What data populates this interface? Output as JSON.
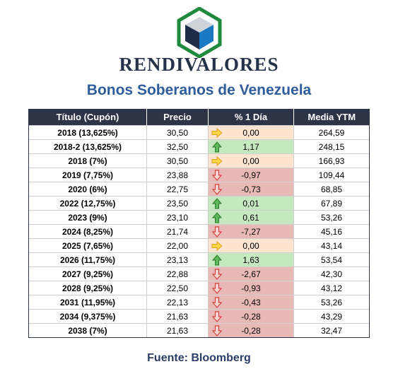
{
  "brand": "RENDIVALORES",
  "subtitle": "Bonos Soberanos de Venezuela",
  "columns": [
    "Título (Cupón)",
    "Precio",
    "% 1 Día",
    "Media YTM"
  ],
  "colors": {
    "header_bg": "#2c3446",
    "up": "#c6e8c0",
    "down": "#e9b9b8",
    "flat": "#fde4d0",
    "subtitle": "#2f5d9b"
  },
  "rows": [
    {
      "title": "2018 (13,625%)",
      "price": "30,50",
      "change": "0,00",
      "dir": "flat",
      "ytm": "264,59"
    },
    {
      "title": "2018-2 (13,625%)",
      "price": "32,50",
      "change": "1,17",
      "dir": "up",
      "ytm": "248,15"
    },
    {
      "title": "2018 (7%)",
      "price": "30,50",
      "change": "0,00",
      "dir": "flat",
      "ytm": "166,93"
    },
    {
      "title": "2019 (7,75%)",
      "price": "23,88",
      "change": "-0,97",
      "dir": "down",
      "ytm": "109,44"
    },
    {
      "title": "2020 (6%)",
      "price": "22,75",
      "change": "-0,73",
      "dir": "down",
      "ytm": "68,85"
    },
    {
      "title": "2022 (12,75%)",
      "price": "23,50",
      "change": "0,01",
      "dir": "up",
      "ytm": "67,89"
    },
    {
      "title": "2023 (9%)",
      "price": "23,10",
      "change": "0,61",
      "dir": "up",
      "ytm": "53,26"
    },
    {
      "title": "2024 (8,25%)",
      "price": "21,74",
      "change": "-7,27",
      "dir": "down",
      "ytm": "45,16"
    },
    {
      "title": "2025 (7,65%)",
      "price": "22,00",
      "change": "0,00",
      "dir": "flat",
      "ytm": "43,14"
    },
    {
      "title": "2026 (11,75%)",
      "price": "23,13",
      "change": "1,63",
      "dir": "up",
      "ytm": "53,54"
    },
    {
      "title": "2027 (9,25%)",
      "price": "22,88",
      "change": "-2,67",
      "dir": "down",
      "ytm": "42,30"
    },
    {
      "title": "2028 (9,25%)",
      "price": "22,50",
      "change": "-0,93",
      "dir": "down",
      "ytm": "43,12"
    },
    {
      "title": "2031 (11,95%)",
      "price": "22,13",
      "change": "-0,43",
      "dir": "down",
      "ytm": "53,26"
    },
    {
      "title": "2034 (9,375%)",
      "price": "21,63",
      "change": "-0,28",
      "dir": "down",
      "ytm": "43,29"
    },
    {
      "title": "2038 (7%)",
      "price": "21,63",
      "change": "-0,28",
      "dir": "down",
      "ytm": "32,47"
    }
  ],
  "source": "Fuente: Bloomberg"
}
